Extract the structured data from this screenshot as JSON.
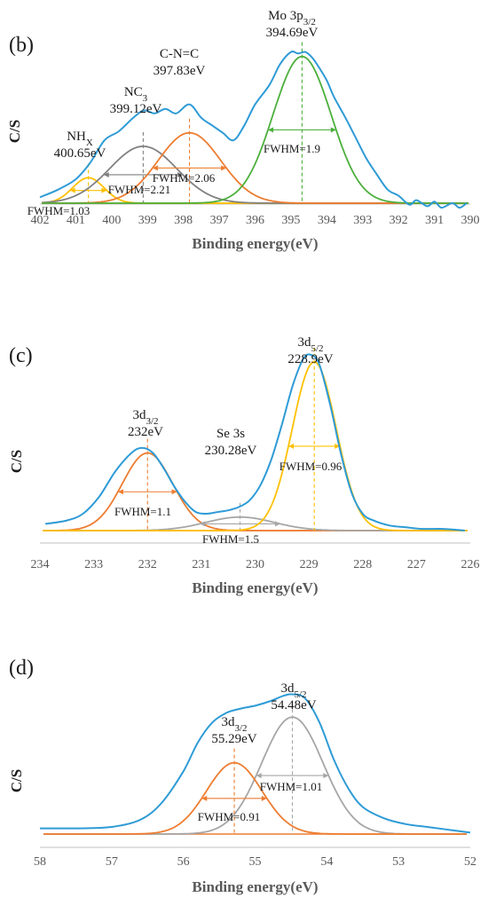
{
  "chart_data": [
    {
      "type": "line",
      "panel_label": "(b)",
      "xlabel": "Binding energy(eV)",
      "ylabel": "C/S",
      "xlim": [
        402,
        390
      ],
      "xticks": [
        402,
        401,
        400,
        399,
        398,
        397,
        396,
        395,
        394,
        393,
        392,
        391,
        390
      ],
      "ylim": [
        0,
        1.15
      ],
      "series": [
        {
          "key": "raw",
          "color": "#2e9bd6",
          "type": "raw",
          "x": [
            402,
            401.5,
            401.0,
            400.6,
            400.2,
            399.8,
            399.4,
            399.1,
            398.8,
            398.5,
            398.2,
            397.83,
            397.5,
            397.2,
            396.9,
            396.6,
            396.3,
            396.0,
            395.6,
            395.3,
            395.0,
            394.8,
            394.6,
            394.4,
            394.2,
            394.0,
            393.8,
            393.5,
            393.2,
            392.9,
            392.6,
            392.3,
            392.0,
            391.7,
            391.5,
            391.2,
            391.0,
            390.8,
            390.5,
            390.3,
            390.1
          ],
          "y": [
            0.04,
            0.09,
            0.16,
            0.27,
            0.42,
            0.48,
            0.57,
            0.62,
            0.6,
            0.63,
            0.6,
            0.66,
            0.57,
            0.52,
            0.47,
            0.42,
            0.52,
            0.66,
            0.79,
            0.93,
            1.01,
            1.0,
            1.01,
            0.97,
            0.9,
            0.82,
            0.71,
            0.58,
            0.44,
            0.3,
            0.19,
            0.09,
            0.05,
            -0.01,
            0.02,
            -0.02,
            0.01,
            -0.03,
            0.0,
            -0.03,
            0.0
          ]
        },
        {
          "key": "nh",
          "color": "#ffc000",
          "type": "peak",
          "center": 400.65,
          "fwhm": 1.03,
          "height": 0.17
        },
        {
          "key": "nc3",
          "color": "#808080",
          "type": "peak",
          "center": 399.12,
          "fwhm": 2.21,
          "height": 0.38
        },
        {
          "key": "cnc",
          "color": "#ed7d31",
          "type": "peak",
          "center": 397.83,
          "fwhm": 2.06,
          "height": 0.47
        },
        {
          "key": "mo",
          "color": "#4caf3c",
          "type": "peak",
          "center": 394.69,
          "fwhm": 1.9,
          "height": 0.98
        }
      ],
      "baseline_color": "#ffc000",
      "annotations": [
        {
          "lines": [
            "Mo 3p",
            "3/2",
            "394.69eV"
          ],
          "sub": true
        },
        {
          "lines": [
            "C-N=C",
            "",
            "397.83eV"
          ],
          "sub": false
        },
        {
          "lines": [
            "NC",
            "3",
            "399.12eV"
          ],
          "sub": true
        },
        {
          "lines": [
            "NH",
            "X",
            "400.65eV"
          ],
          "sub": true
        }
      ],
      "fwhm_labels": [
        "FWHM=1.9",
        "FWHM=2.06",
        "FWHM=2.21",
        "FWHM=1.03"
      ]
    },
    {
      "type": "line",
      "panel_label": "(c)",
      "xlabel": "Binding energy(eV)",
      "ylabel": "C/S",
      "xlim": [
        234,
        226
      ],
      "xticks": [
        234,
        233,
        232,
        231,
        230,
        229,
        228,
        227,
        226
      ],
      "ylim": [
        0,
        1.12
      ],
      "series": [
        {
          "key": "raw",
          "color": "#2e9bd6",
          "type": "raw",
          "x": [
            233.9,
            233.5,
            233.2,
            232.9,
            232.6,
            232.3,
            232.1,
            231.9,
            231.7,
            231.5,
            231.3,
            231.1,
            230.9,
            230.7,
            230.5,
            230.3,
            230.1,
            229.9,
            229.7,
            229.5,
            229.3,
            229.1,
            228.95,
            228.8,
            228.6,
            228.4,
            228.2,
            228.0,
            227.8,
            227.5,
            227.2,
            226.9,
            226.5,
            226.1
          ],
          "y": [
            0.04,
            0.06,
            0.1,
            0.2,
            0.35,
            0.46,
            0.49,
            0.46,
            0.37,
            0.26,
            0.17,
            0.11,
            0.1,
            0.11,
            0.12,
            0.14,
            0.18,
            0.27,
            0.42,
            0.63,
            0.86,
            1.02,
            1.04,
            0.98,
            0.74,
            0.45,
            0.22,
            0.1,
            0.06,
            0.03,
            0.02,
            0.01,
            0.01,
            0.0
          ]
        },
        {
          "key": "d32",
          "color": "#ed7d31",
          "type": "peak",
          "center": 232.0,
          "fwhm": 1.1,
          "height": 0.46
        },
        {
          "key": "se",
          "color": "#a6a6a6",
          "type": "peak",
          "center": 230.28,
          "fwhm": 1.5,
          "height": 0.08
        },
        {
          "key": "d52",
          "color": "#ffc000",
          "type": "peak",
          "center": 228.9,
          "fwhm": 0.96,
          "height": 1.0
        }
      ],
      "baseline_color": "#ed7d31",
      "annotations": [
        {
          "lines": [
            "3d",
            "5/2",
            "228.9eV"
          ],
          "sub": true
        },
        {
          "lines": [
            "3d",
            "3/2",
            "232eV"
          ],
          "sub": true
        },
        {
          "lines": [
            "Se 3s",
            "",
            "230.28eV"
          ],
          "sub": false
        }
      ],
      "fwhm_labels": [
        "FWHM=0.96",
        "FWHM=1.1",
        "FWHM=1.5"
      ]
    },
    {
      "type": "line",
      "panel_label": "(d)",
      "xlabel": "Binding energy(eV)",
      "ylabel": "C/S",
      "xlim": [
        58,
        52
      ],
      "xticks": [
        58,
        57,
        56,
        55,
        54,
        53,
        52
      ],
      "ylim": [
        0,
        1.12
      ],
      "series": [
        {
          "key": "raw",
          "color": "#2e9bd6",
          "type": "raw",
          "x": [
            58.0,
            57.5,
            57.0,
            56.6,
            56.3,
            56.0,
            55.8,
            55.6,
            55.4,
            55.2,
            55.0,
            54.8,
            54.6,
            54.48,
            54.3,
            54.1,
            53.9,
            53.7,
            53.5,
            53.2,
            52.9,
            52.6,
            52.3,
            52.0
          ],
          "y": [
            0.04,
            0.04,
            0.05,
            0.1,
            0.22,
            0.44,
            0.64,
            0.78,
            0.85,
            0.88,
            0.9,
            0.93,
            0.97,
            0.98,
            0.95,
            0.78,
            0.52,
            0.32,
            0.19,
            0.11,
            0.07,
            0.05,
            0.03,
            0.01
          ]
        },
        {
          "key": "d52",
          "color": "#a6a6a6",
          "type": "peak",
          "center": 54.48,
          "fwhm": 1.01,
          "height": 0.82
        },
        {
          "key": "d32",
          "color": "#ed7d31",
          "type": "peak",
          "center": 55.29,
          "fwhm": 0.91,
          "height": 0.5
        }
      ],
      "baseline_color": "#ed7d31",
      "annotations": [
        {
          "lines": [
            "3d",
            "5/2",
            "54.48eV"
          ],
          "sub": true
        },
        {
          "lines": [
            "3d",
            "3/2",
            "55.29eV"
          ],
          "sub": true
        }
      ],
      "fwhm_labels": [
        "FWHM=1.01",
        "FWHM=0.91"
      ]
    }
  ]
}
